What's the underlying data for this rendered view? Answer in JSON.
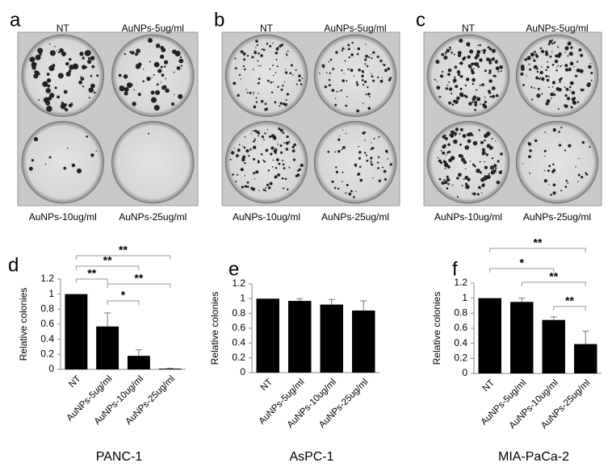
{
  "panels": [
    {
      "letter": "a",
      "top_left": "NT",
      "top_right": "AuNPs-5ug/ml",
      "bottom_left": "AuNPs-10ug/ml",
      "bottom_right": "AuNPs-25ug/ml"
    },
    {
      "letter": "b",
      "top_left": "NT",
      "top_right": "AuNPs-5ug/ml",
      "bottom_left": "AuNPs-10ug/ml",
      "bottom_right": "AuNPs-25ug/ml"
    },
    {
      "letter": "c",
      "top_left": "NT",
      "top_right": "AuNPs-5ug/ml",
      "bottom_left": "AuNPs-10ug/ml",
      "bottom_right": "AuNPs-25ug/ml"
    }
  ],
  "chart_data": [
    {
      "type": "bar",
      "letter": "d",
      "xlabel": "PANC-1",
      "ylabel": "Relative colonies",
      "categories": [
        "NT",
        "AuNPs-5ug/ml",
        "AuNPs-10ug/ml",
        "AuNPs-25ug/ml"
      ],
      "values": [
        1,
        0.57,
        0.18,
        0.01
      ],
      "errors": [
        0,
        0.18,
        0.08,
        0.005
      ],
      "color": "#000000",
      "ylim": [
        0,
        1.2
      ],
      "yticks": [
        0,
        0.2,
        0.4,
        0.6,
        0.8,
        1,
        1.2
      ],
      "comparisons": [
        {
          "label": "**",
          "between": [
            "NT",
            "AuNPs-25ug/ml"
          ]
        },
        {
          "label": "**",
          "between": [
            "NT",
            "AuNPs-10ug/ml"
          ]
        },
        {
          "label": "**",
          "between": [
            "NT",
            "AuNPs-5ug/ml"
          ]
        },
        {
          "label": "**",
          "between": [
            "AuNPs-5ug/ml",
            "AuNPs-25ug/ml"
          ]
        },
        {
          "label": "*",
          "between": [
            "AuNPs-5ug/ml",
            "AuNPs-10ug/ml"
          ]
        }
      ]
    },
    {
      "type": "bar",
      "letter": "e",
      "xlabel": "AsPC-1",
      "ylabel": "Relative colonies",
      "categories": [
        "NT",
        "AuNPs-5ug/ml",
        "AuNPs-10ug/ml",
        "AuNPs-25ug/ml"
      ],
      "values": [
        1,
        0.97,
        0.92,
        0.84
      ],
      "errors": [
        0,
        0.03,
        0.07,
        0.13
      ],
      "color": "#000000",
      "ylim": [
        0,
        1.2
      ],
      "yticks": [
        0,
        0.2,
        0.4,
        0.6,
        0.8,
        1,
        1.2
      ],
      "comparisons": []
    },
    {
      "type": "bar",
      "letter": "f",
      "xlabel": "MIA-PaCa-2",
      "ylabel": "Relative colonies",
      "categories": [
        "NT",
        "AuNPs-5ug/ml",
        "AuNPs-10ug/ml",
        "AuNPs-25ug/ml"
      ],
      "values": [
        1,
        0.95,
        0.71,
        0.39
      ],
      "errors": [
        0,
        0.05,
        0.04,
        0.17
      ],
      "color": "#000000",
      "ylim": [
        0,
        1.2
      ],
      "yticks": [
        0,
        0.2,
        0.4,
        0.6,
        0.8,
        1,
        1.2
      ],
      "comparisons": [
        {
          "label": "**",
          "between": [
            "NT",
            "AuNPs-25ug/ml"
          ]
        },
        {
          "label": "*",
          "between": [
            "NT",
            "AuNPs-10ug/ml"
          ]
        },
        {
          "label": "**",
          "between": [
            "AuNPs-5ug/ml",
            "AuNPs-25ug/ml"
          ]
        },
        {
          "label": "**",
          "between": [
            "AuNPs-10ug/ml",
            "AuNPs-25ug/ml"
          ]
        }
      ]
    }
  ]
}
